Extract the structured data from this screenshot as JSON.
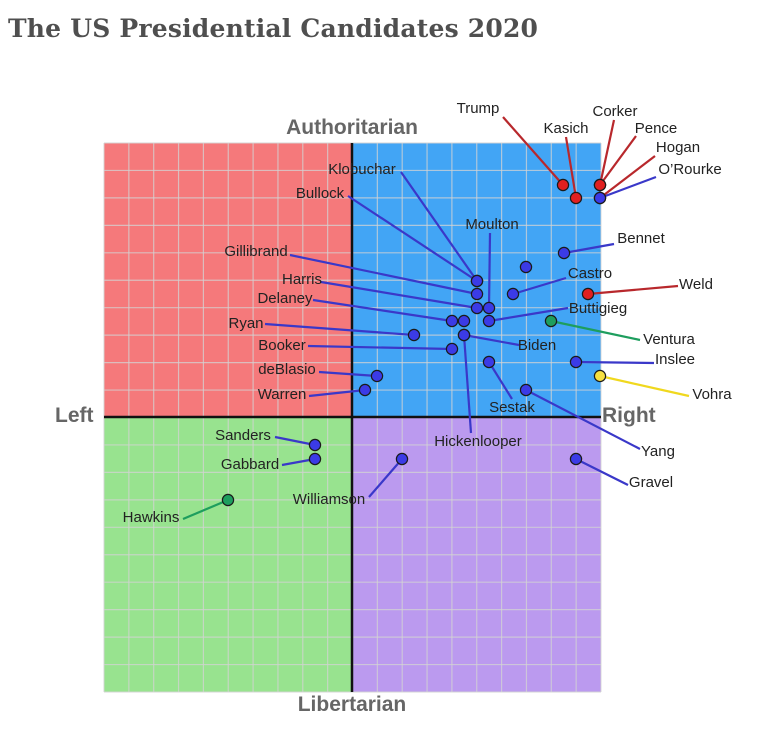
{
  "title": "The US Presidential Candidates 2020",
  "chart_data": {
    "type": "scatter",
    "title": "The US Presidential Candidates 2020",
    "xlim": [
      -10,
      10
    ],
    "ylim": [
      -10,
      10
    ],
    "grid": true,
    "axis_labels": {
      "top": "Authoritarian",
      "bottom": "Libertarian",
      "left": "Left",
      "right": "Right"
    },
    "quadrant_colors": {
      "authoritarian_left": "#f5797b",
      "authoritarian_right": "#42a5f5",
      "libertarian_left": "#98e38f",
      "libertarian_right": "#bb9aef"
    },
    "marker_colors": {
      "blue": "#3b3be6",
      "red": "#e02020",
      "green": "#1e9e5e",
      "yellow": "#f6e040"
    },
    "points": [
      {
        "name": "Trump",
        "x": 8.4,
        "y": 8.5,
        "color": "red"
      },
      {
        "name": "Kasich",
        "x": 8.9,
        "y": 8.0,
        "color": "red"
      },
      {
        "name": "Corker",
        "x": 9.9,
        "y": 8.5,
        "color": "red"
      },
      {
        "name": "Pence",
        "x": 9.9,
        "y": 8.5,
        "color": "red"
      },
      {
        "name": "Hogan",
        "x": 9.9,
        "y": 8.0,
        "color": "red"
      },
      {
        "name": "Weld",
        "x": 9.4,
        "y": 4.5,
        "color": "red"
      },
      {
        "name": "Ventura",
        "x": 8.0,
        "y": 3.5,
        "color": "green"
      },
      {
        "name": "Vohra",
        "x": 10.0,
        "y": 1.5,
        "color": "yellow"
      },
      {
        "name": "Hawkins",
        "x": -5.0,
        "y": -3.0,
        "color": "green"
      },
      {
        "name": "O’Rourke",
        "x": 9.9,
        "y": 8.0,
        "color": "blue"
      },
      {
        "name": "Bennet",
        "x": 8.5,
        "y": 6.0,
        "color": "blue"
      },
      {
        "name": "Moulton",
        "x": 7.0,
        "y": 5.5,
        "color": "blue"
      },
      {
        "name": "Castro",
        "x": 6.5,
        "y": 4.5,
        "color": "blue"
      },
      {
        "name": "Klobuchar",
        "x": 5.0,
        "y": 5.0,
        "color": "blue"
      },
      {
        "name": "Bullock",
        "x": 5.0,
        "y": 4.5,
        "color": "blue"
      },
      {
        "name": "Gillibrand",
        "x": 5.0,
        "y": 4.0,
        "color": "blue"
      },
      {
        "name": "Harris",
        "x": 5.5,
        "y": 4.0,
        "color": "blue"
      },
      {
        "name": "Delaney",
        "x": 4.0,
        "y": 3.5,
        "color": "blue"
      },
      {
        "name": "Buttigieg",
        "x": 5.5,
        "y": 3.5,
        "color": "blue"
      },
      {
        "name": "Ryan",
        "x": 2.5,
        "y": 3.0,
        "color": "blue"
      },
      {
        "name": "Biden",
        "x": 4.5,
        "y": 3.0,
        "color": "blue"
      },
      {
        "name": "Booker",
        "x": 4.0,
        "y": 2.5,
        "color": "blue"
      },
      {
        "name": "Inslee",
        "x": 9.0,
        "y": 2.0,
        "color": "blue"
      },
      {
        "name": "Sestak",
        "x": 5.5,
        "y": 2.0,
        "color": "blue"
      },
      {
        "name": "deBlasio",
        "x": 1.0,
        "y": 1.5,
        "color": "blue"
      },
      {
        "name": "Warren",
        "x": 0.5,
        "y": 1.0,
        "color": "blue"
      },
      {
        "name": "Yang",
        "x": 7.0,
        "y": 1.0,
        "color": "blue"
      },
      {
        "name": "Hickenlooper",
        "x": 4.5,
        "y": 3.0,
        "color": "blue"
      },
      {
        "name": "Sanders",
        "x": -1.5,
        "y": -1.0,
        "color": "blue"
      },
      {
        "name": "Gabbard",
        "x": -1.5,
        "y": -1.5,
        "color": "blue"
      },
      {
        "name": "Williamson",
        "x": 2.0,
        "y": -1.5,
        "color": "blue"
      },
      {
        "name": "Gravel",
        "x": 9.0,
        "y": -1.5,
        "color": "blue"
      }
    ]
  }
}
